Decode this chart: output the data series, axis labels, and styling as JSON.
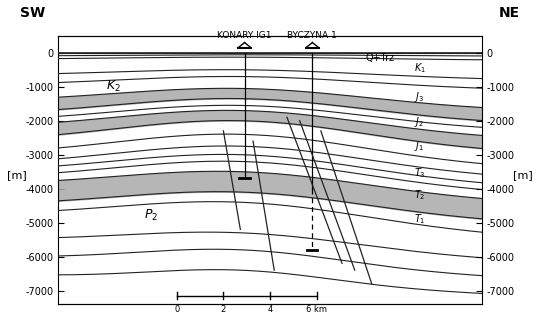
{
  "sw_label": "SW",
  "ne_label": "NE",
  "ylabel_left": "[m]",
  "ylabel_right": "[m]",
  "ylim": [
    -7400,
    500
  ],
  "xlim": [
    0,
    100
  ],
  "yticks": [
    0,
    -1000,
    -2000,
    -3000,
    -4000,
    -5000,
    -6000,
    -7000
  ],
  "bg_color": "#ffffff",
  "gray_color": "#aaaaaa",
  "line_color": "#222222",
  "well1_x": 44,
  "well2_x": 60,
  "well1_label": "KONARY IG1",
  "well2_label": "BYCZYNA 1",
  "label_K2": "$K_2$",
  "label_P2": "$P_2$",
  "label_QTrz": "Q+Trz",
  "label_K1": "$K_1$",
  "label_J3": "$J_3$",
  "label_J2": "$J_2$",
  "label_J1": "$J_1$",
  "label_T3": "$T_3$",
  "label_T2": "$T_2$",
  "label_T1": "$T_1$",
  "scale_label": "6 km"
}
